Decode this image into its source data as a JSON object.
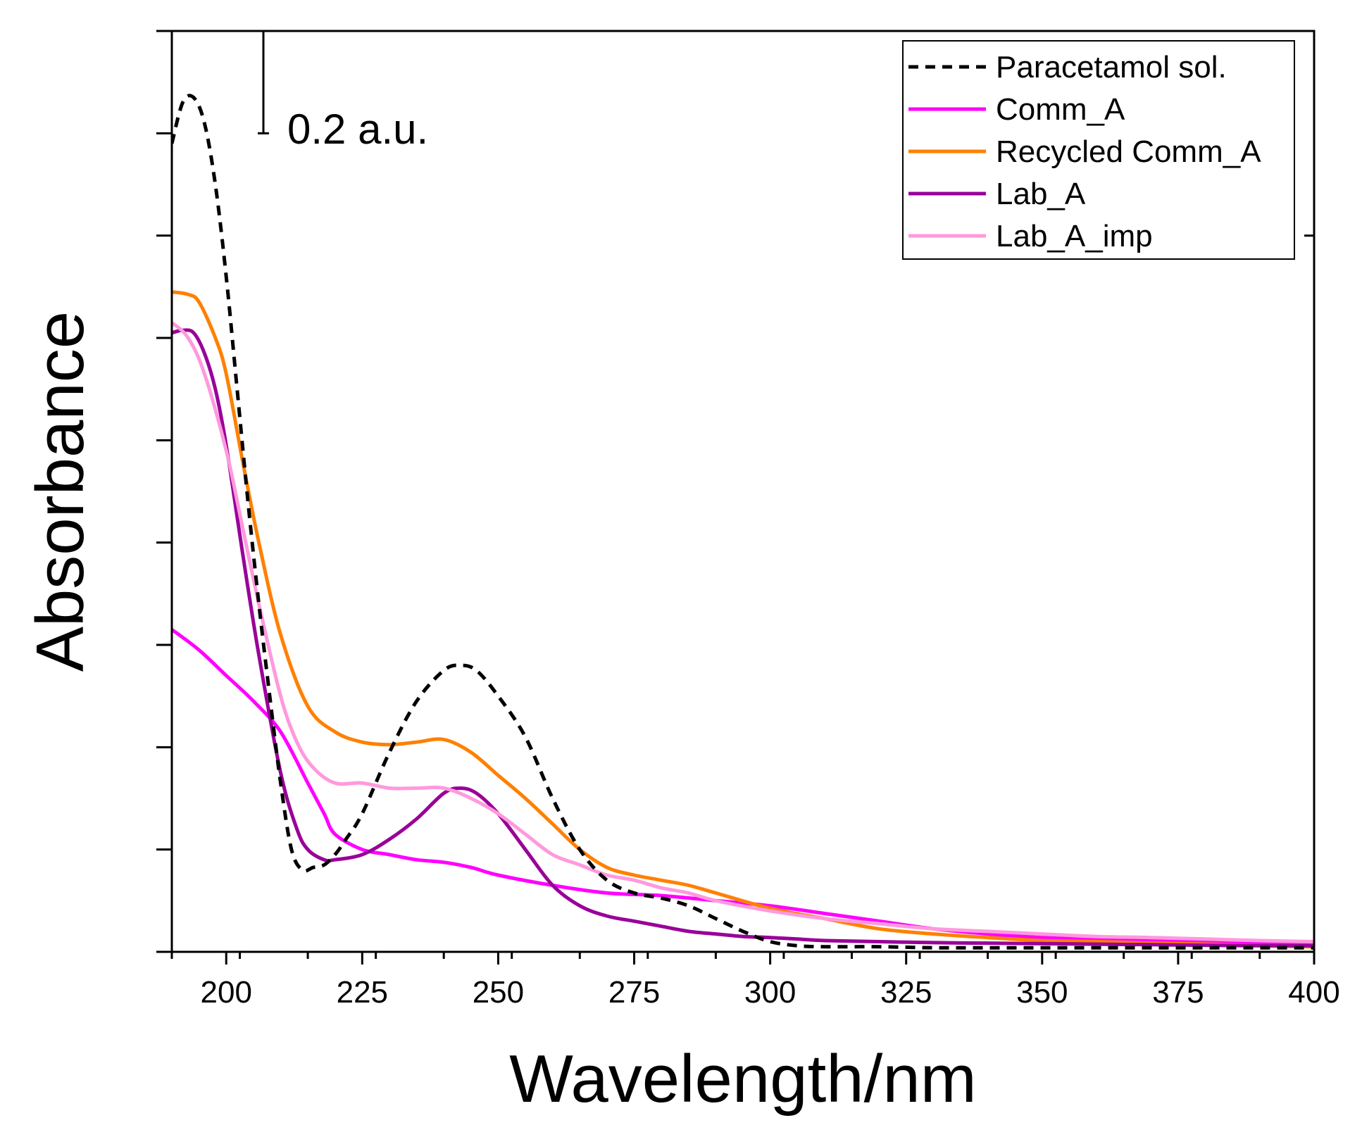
{
  "chart_data": {
    "type": "line",
    "title": "",
    "xlabel": "Wavelength/nm",
    "ylabel": "Absorbance",
    "xlim": [
      190,
      400
    ],
    "ylim": [
      0,
      1.8
    ],
    "xticks": [
      200,
      225,
      250,
      275,
      300,
      325,
      350,
      375,
      400
    ],
    "xtick_labels": [
      "200",
      "225",
      "250",
      "275",
      "300",
      "325",
      "350",
      "375",
      "400"
    ],
    "ytick_values": [
      0,
      0.2,
      0.4,
      0.6,
      0.8,
      1.0,
      1.2,
      1.4,
      1.6,
      1.8
    ],
    "scale_bar": {
      "label": "0.2 a.u.",
      "value": 0.2,
      "from": 1.6,
      "to": 1.8
    },
    "legend_position": "top-right",
    "series": [
      {
        "name": "Paracetamol sol.",
        "color": "#000000",
        "dash": true,
        "x": [
          190,
          192,
          194,
          196,
          198,
          200,
          202,
          204,
          206,
          208,
          210,
          212,
          214,
          216,
          218,
          220,
          222,
          225,
          230,
          235,
          240,
          243,
          246,
          250,
          255,
          260,
          265,
          270,
          275,
          280,
          285,
          290,
          295,
          300,
          305,
          310,
          320,
          330,
          340,
          350,
          360,
          370,
          380,
          390,
          400
        ],
        "y": [
          1.58,
          1.66,
          1.67,
          1.62,
          1.5,
          1.32,
          1.1,
          0.88,
          0.68,
          0.5,
          0.33,
          0.2,
          0.16,
          0.165,
          0.17,
          0.19,
          0.22,
          0.27,
          0.39,
          0.49,
          0.55,
          0.56,
          0.55,
          0.5,
          0.42,
          0.3,
          0.2,
          0.14,
          0.115,
          0.105,
          0.09,
          0.065,
          0.04,
          0.02,
          0.012,
          0.01,
          0.01,
          0.008,
          0.008,
          0.008,
          0.008,
          0.008,
          0.008,
          0.008,
          0.008
        ]
      },
      {
        "name": "Comm_A",
        "color": "#ff00ff",
        "dash": false,
        "x": [
          190,
          195,
          200,
          205,
          210,
          215,
          218,
          220,
          225,
          230,
          235,
          240,
          245,
          250,
          260,
          270,
          280,
          290,
          300,
          310,
          320,
          330,
          340,
          350,
          360,
          370,
          380,
          390,
          400
        ],
        "y": [
          0.63,
          0.59,
          0.54,
          0.49,
          0.43,
          0.33,
          0.27,
          0.23,
          0.2,
          0.19,
          0.18,
          0.175,
          0.165,
          0.15,
          0.13,
          0.115,
          0.11,
          0.1,
          0.09,
          0.075,
          0.06,
          0.045,
          0.035,
          0.028,
          0.025,
          0.022,
          0.02,
          0.018,
          0.016
        ]
      },
      {
        "name": "Recycled Comm_A",
        "color": "#ff8000",
        "dash": false,
        "x": [
          190,
          193,
          195,
          198,
          200,
          203,
          206,
          210,
          215,
          220,
          225,
          230,
          235,
          240,
          245,
          250,
          255,
          260,
          265,
          270,
          275,
          280,
          285,
          290,
          300,
          310,
          320,
          330,
          340,
          350,
          360,
          370,
          380,
          390,
          400
        ],
        "y": [
          1.29,
          1.285,
          1.27,
          1.2,
          1.13,
          0.96,
          0.8,
          0.62,
          0.48,
          0.43,
          0.41,
          0.405,
          0.41,
          0.415,
          0.39,
          0.345,
          0.3,
          0.25,
          0.2,
          0.165,
          0.15,
          0.14,
          0.13,
          0.115,
          0.085,
          0.065,
          0.045,
          0.035,
          0.028,
          0.022,
          0.02,
          0.017,
          0.015,
          0.012,
          0.01
        ]
      },
      {
        "name": "Lab_A",
        "color": "#990099",
        "dash": false,
        "x": [
          190,
          192,
          194,
          196,
          198,
          200,
          203,
          206,
          210,
          213,
          215,
          218,
          220,
          225,
          230,
          235,
          240,
          243,
          246,
          250,
          255,
          260,
          265,
          270,
          275,
          280,
          285,
          290,
          295,
          300,
          305,
          310,
          320,
          330,
          340,
          350,
          360,
          370,
          380,
          390,
          400
        ],
        "y": [
          1.21,
          1.215,
          1.21,
          1.17,
          1.1,
          0.99,
          0.78,
          0.58,
          0.35,
          0.24,
          0.2,
          0.18,
          0.18,
          0.19,
          0.22,
          0.26,
          0.31,
          0.32,
          0.31,
          0.27,
          0.2,
          0.13,
          0.09,
          0.07,
          0.06,
          0.05,
          0.04,
          0.035,
          0.03,
          0.028,
          0.025,
          0.022,
          0.02,
          0.018,
          0.017,
          0.016,
          0.015,
          0.014,
          0.013,
          0.012,
          0.012
        ]
      },
      {
        "name": "Lab_A_imp",
        "color": "#ff99dd",
        "dash": false,
        "x": [
          190,
          193,
          196,
          200,
          203,
          206,
          210,
          213,
          216,
          220,
          225,
          230,
          235,
          240,
          245,
          250,
          255,
          260,
          265,
          270,
          275,
          280,
          285,
          290,
          300,
          310,
          320,
          330,
          340,
          350,
          360,
          370,
          380,
          390,
          400
        ],
        "y": [
          1.23,
          1.2,
          1.13,
          0.98,
          0.83,
          0.68,
          0.5,
          0.41,
          0.36,
          0.33,
          0.33,
          0.32,
          0.32,
          0.32,
          0.3,
          0.27,
          0.23,
          0.19,
          0.17,
          0.15,
          0.14,
          0.125,
          0.115,
          0.1,
          0.08,
          0.065,
          0.055,
          0.045,
          0.04,
          0.035,
          0.03,
          0.028,
          0.025,
          0.022,
          0.02
        ]
      }
    ]
  }
}
